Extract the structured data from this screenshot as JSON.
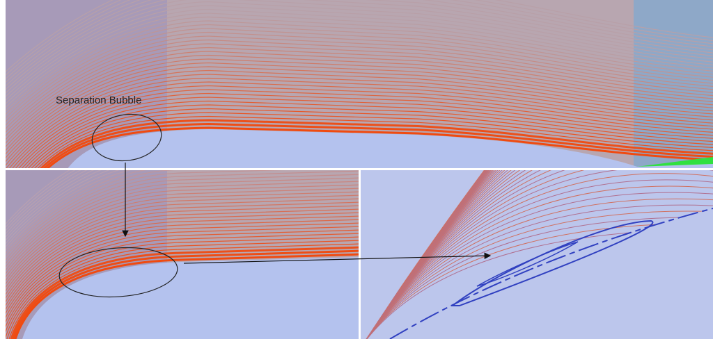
{
  "annotation": {
    "label": "Separation Bubble"
  }
}
